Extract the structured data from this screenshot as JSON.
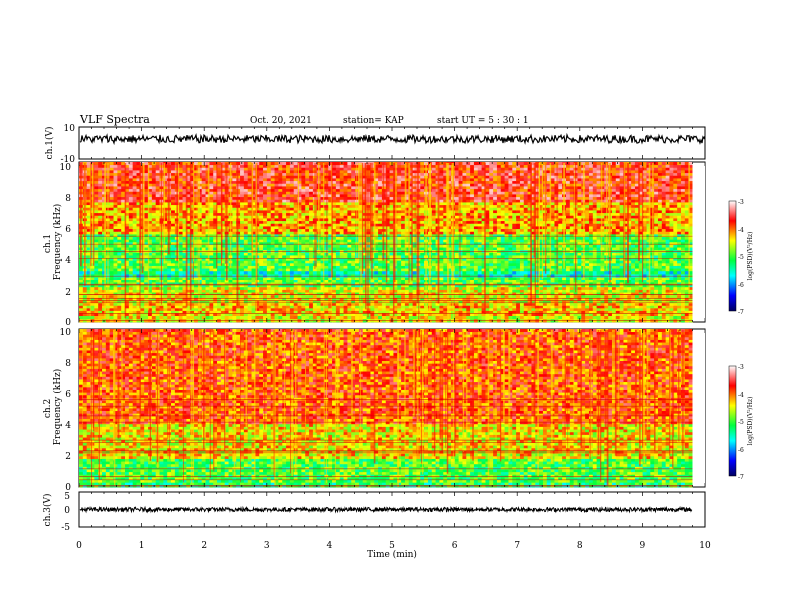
{
  "header": {
    "title": "VLF Spectra",
    "date": "Oct. 20, 2021",
    "station": "station= KAP",
    "start_ut": "start  UT =   5  : 30 : 1"
  },
  "chart_data": [
    {
      "id": "ch1-waveform",
      "type": "line",
      "ylabel": "ch.1(V)",
      "ylim": [
        -10,
        10
      ],
      "yticks": [
        "10",
        "-10"
      ],
      "xlim": [
        0,
        10
      ],
      "baseline": 2.5,
      "amplitude": 2.5,
      "color": "#000000"
    },
    {
      "id": "ch1-spectrogram",
      "type": "heatmap",
      "ylabel": "ch.1\nFrequency  (kHz)",
      "ylim": [
        0,
        10
      ],
      "yticks": [
        "0",
        "2",
        "4",
        "6",
        "8",
        "10"
      ],
      "xlim": [
        0,
        9.8
      ],
      "colorbar": {
        "label": "log(PSD)(V²/Hz)",
        "range": [
          -7,
          -3
        ],
        "ticks": [
          "-3",
          "-4",
          "-5",
          "-6",
          "-7"
        ]
      },
      "bands": [
        {
          "from": 0,
          "to": 0.4,
          "level": -4.5
        },
        {
          "from": 0.4,
          "to": 1.2,
          "level": -4.3
        },
        {
          "from": 1.2,
          "to": 2.2,
          "level": -4.5
        },
        {
          "from": 2.2,
          "to": 2.8,
          "level": -5.0
        },
        {
          "from": 2.8,
          "to": 3.2,
          "level": -5.5
        },
        {
          "from": 3.2,
          "to": 5.5,
          "level": -5.0
        },
        {
          "from": 5.5,
          "to": 7.5,
          "level": -4.2
        },
        {
          "from": 7.5,
          "to": 10,
          "level": -3.7
        }
      ]
    },
    {
      "id": "ch2-spectrogram",
      "type": "heatmap",
      "ylabel": "ch.2\nFrequency  (kHz)",
      "ylim": [
        0,
        10
      ],
      "yticks": [
        "0",
        "2",
        "4",
        "6",
        "8",
        "10"
      ],
      "xlim": [
        0,
        9.8
      ],
      "colorbar": {
        "label": "log(PSD)(V²/Hz)",
        "range": [
          -7,
          -3
        ],
        "ticks": [
          "-3",
          "-4",
          "-5",
          "-6",
          "-7"
        ]
      },
      "bands": [
        {
          "from": 0,
          "to": 0.3,
          "level": -5.2
        },
        {
          "from": 0.3,
          "to": 1.8,
          "level": -5.0
        },
        {
          "from": 1.8,
          "to": 4.0,
          "level": -4.4
        },
        {
          "from": 4.0,
          "to": 10,
          "level": -3.9
        }
      ]
    },
    {
      "id": "ch3-waveform",
      "type": "line",
      "ylabel": "ch.3(V)",
      "ylim": [
        -5,
        5
      ],
      "yticks": [
        "5",
        "0",
        "-5"
      ],
      "xlim": [
        0,
        9.8
      ],
      "baseline": 0,
      "amplitude": 0.6,
      "color": "#000000"
    }
  ],
  "xaxis": {
    "label": "Time  (min)",
    "range": [
      0,
      10
    ],
    "ticks": [
      "0",
      "1",
      "2",
      "3",
      "4",
      "5",
      "6",
      "7",
      "8",
      "9",
      "10"
    ]
  },
  "colors": {
    "scale": [
      "#000060",
      "#0000ff",
      "#00ffff",
      "#00ff40",
      "#ffff00",
      "#ff0000",
      "#ffffff"
    ]
  }
}
